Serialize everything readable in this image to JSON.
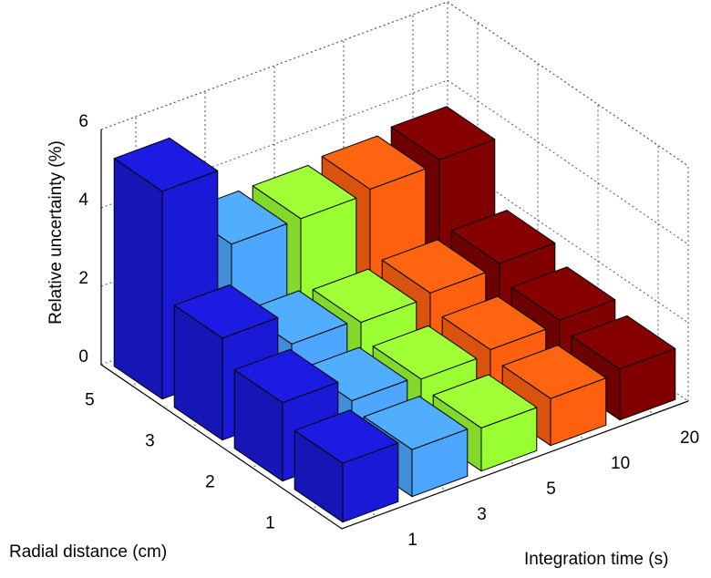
{
  "chart_data": {
    "type": "bar3d",
    "xlabel": "Integration time (s)",
    "ylabel": "Radial distance (cm)",
    "zlabel": "Relative uncertainty (%)",
    "categories": [
      "1",
      "2",
      "3",
      "5"
    ],
    "series": [
      {
        "name": "1",
        "color": "#1a1ad6",
        "values": [
          1.5,
          2.0,
          2.6,
          5.3
        ]
      },
      {
        "name": "3",
        "color": "#4da6ff",
        "values": [
          1.2,
          1.4,
          1.8,
          3.3
        ]
      },
      {
        "name": "5",
        "color": "#99ff33",
        "values": [
          1.1,
          1.3,
          1.7,
          3.3
        ]
      },
      {
        "name": "10",
        "color": "#ff6010",
        "values": [
          1.2,
          1.4,
          1.8,
          3.4
        ]
      },
      {
        "name": "20",
        "color": "#800000",
        "values": [
          1.3,
          1.5,
          1.9,
          3.5
        ]
      }
    ],
    "zlim": [
      0,
      6
    ],
    "zticks": [
      0,
      2,
      4,
      6
    ],
    "grid": true
  }
}
